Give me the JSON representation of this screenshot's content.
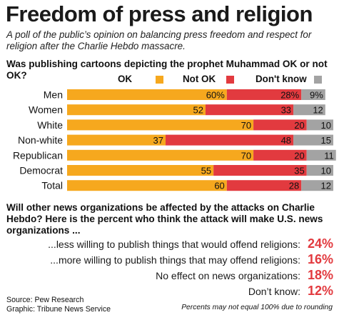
{
  "title": "Freedom of press and religion",
  "subtitle": "A poll of the public’s opinion on balancing press freedom and respect for religion after the Charlie Hebdo massacre.",
  "question1": "Was publishing cartoons depicting the prophet Muhammad OK or not OK?",
  "colors": {
    "ok": "#f6a81e",
    "not_ok": "#e23a3f",
    "dont_know": "#a3a3a3"
  },
  "chart_data": {
    "type": "bar",
    "stacked": true,
    "orientation": "horizontal",
    "categories": [
      "Men",
      "Women",
      "White",
      "Non-white",
      "Republican",
      "Democrat",
      "Total"
    ],
    "series": [
      {
        "name": "OK",
        "values": [
          60,
          52,
          70,
          37,
          70,
          55,
          60
        ],
        "labels": [
          "60%",
          "52",
          "70",
          "37",
          "70",
          "55",
          "60"
        ]
      },
      {
        "name": "Not OK",
        "values": [
          28,
          33,
          20,
          48,
          20,
          35,
          28
        ],
        "labels": [
          "28%",
          "33",
          "20",
          "48",
          "20",
          "35",
          "28"
        ]
      },
      {
        "name": "Don't know",
        "values": [
          9,
          12,
          10,
          15,
          11,
          10,
          12
        ],
        "labels": [
          "9%",
          "12",
          "10",
          "15",
          "11",
          "10",
          "12"
        ]
      }
    ],
    "xlim": [
      0,
      100
    ],
    "legend": "top"
  },
  "question2": "Will other news organizations be affected by the attacks on Charlie Hebdo? Here is the percent who think the attack will make U.S. news organizations ...",
  "results": [
    {
      "label": "...less willing to publish things that would offend religions:",
      "value": "24%"
    },
    {
      "label": "...more willing to publish things that may offend religions:",
      "value": "16%"
    },
    {
      "label": "No effect on news organizations:",
      "value": "18%"
    },
    {
      "label": "Don’t know:",
      "value": "12%"
    }
  ],
  "source_line": "Source: Pew Research",
  "graphic_line": "Graphic: Tribune News Service",
  "footnote": "Percents may not equal 100% due to rounding"
}
